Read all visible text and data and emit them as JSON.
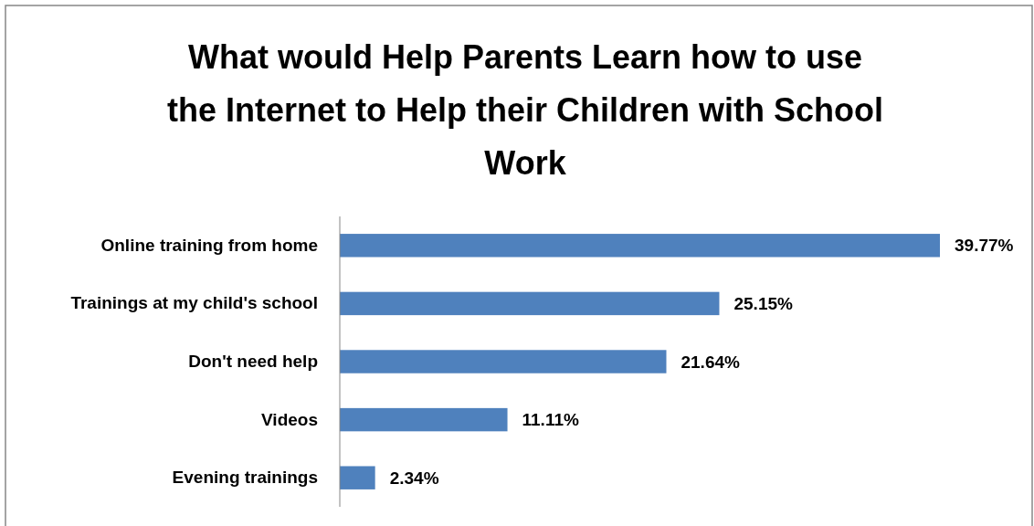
{
  "chart_data": {
    "type": "bar",
    "orientation": "horizontal",
    "title": "What would Help Parents Learn how to use the Internet to Help their Children with School Work",
    "categories": [
      "Online training from home",
      "Trainings at my child's school",
      "Don't need help",
      "Videos",
      "Evening trainings"
    ],
    "values": [
      39.77,
      25.15,
      21.64,
      11.11,
      2.34
    ],
    "value_labels": [
      "39.77%",
      "25.15%",
      "21.64%",
      "11.11%",
      "2.34%"
    ],
    "color": "#4f81bd"
  }
}
